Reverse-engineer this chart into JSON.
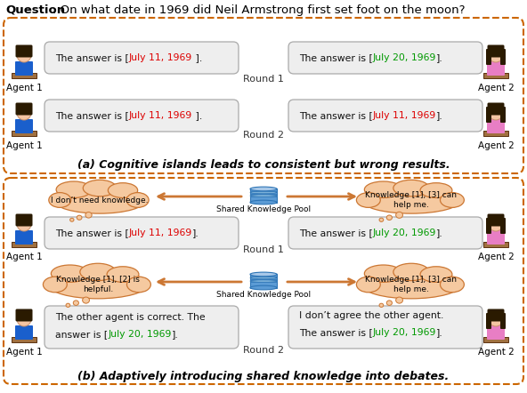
{
  "question_bold": "Question",
  "question_normal": ": On what date in 1969 did Neil Armstrong first set foot on the moon?",
  "bg_color": "#ffffff",
  "border_color": "#cc6600",
  "box_bg": "#eeeeee",
  "box_edge": "#aaaaaa",
  "red_color": "#dd0000",
  "green_color": "#009900",
  "cloud_fill": "#f5c9a0",
  "cloud_edge": "#cc7733",
  "arrow_color": "#cc7733",
  "db_color": "#5b9bd5",
  "db_dark": "#2e75b6",
  "db_light": "#a8c8e8",
  "caption_a": "(a) Cognitive islands leads to consistent but wrong results.",
  "caption_b": "(b) Adaptively introducing shared knowledge into debates.",
  "round1": "Round 1",
  "round2": "Round 2",
  "agent1": "Agent 1",
  "agent2": "Agent 2",
  "pool_label": "Shared Knowledge Pool",
  "sa_r1_a1": [
    "The answer is [",
    "July 11, 1969",
    " ]."
  ],
  "sa_r1_a1_c": [
    "#111111",
    "#dd0000",
    "#111111"
  ],
  "sa_r1_a2": [
    "The answer is [",
    "July 20, 1969",
    "]."
  ],
  "sa_r1_a2_c": [
    "#111111",
    "#009900",
    "#111111"
  ],
  "sa_r2_a1": [
    "The answer is [",
    "July 11, 1969",
    " ]."
  ],
  "sa_r2_a1_c": [
    "#111111",
    "#dd0000",
    "#111111"
  ],
  "sa_r2_a2": [
    "The answer is [",
    "July 11, 1969",
    "]."
  ],
  "sa_r2_a2_c": [
    "#111111",
    "#dd0000",
    "#111111"
  ],
  "sb_cloud1_left": "I don’t need knowledge.",
  "sb_cloud1_right": "Knowledge [1], [3] can\nhelp me.",
  "sb_r1_a1": [
    "The answer is [",
    "July 11, 1969",
    "]."
  ],
  "sb_r1_a1_c": [
    "#111111",
    "#dd0000",
    "#111111"
  ],
  "sb_r1_a2": [
    "The answer is [",
    "July 20, 1969",
    "]."
  ],
  "sb_r1_a2_c": [
    "#111111",
    "#009900",
    "#111111"
  ],
  "sb_cloud2_left": "Knowledge [1], [2] is\nhelpful.",
  "sb_cloud2_right": "Knowledge [1], [3] can\nhelp me.",
  "sb_r2_a1_l1": "The other agent is correct. The",
  "sb_r2_a1_l2": [
    "answer is [",
    "July 20, 1969",
    "]."
  ],
  "sb_r2_a1_l2_c": [
    "#111111",
    "#009900",
    "#111111"
  ],
  "sb_r2_a2_l1": "I don’t agree the other agent.",
  "sb_r2_a2_l2": [
    "The answer is [",
    "July 20, 1969",
    "]."
  ],
  "sb_r2_a2_l2_c": [
    "#111111",
    "#009900",
    "#111111"
  ]
}
